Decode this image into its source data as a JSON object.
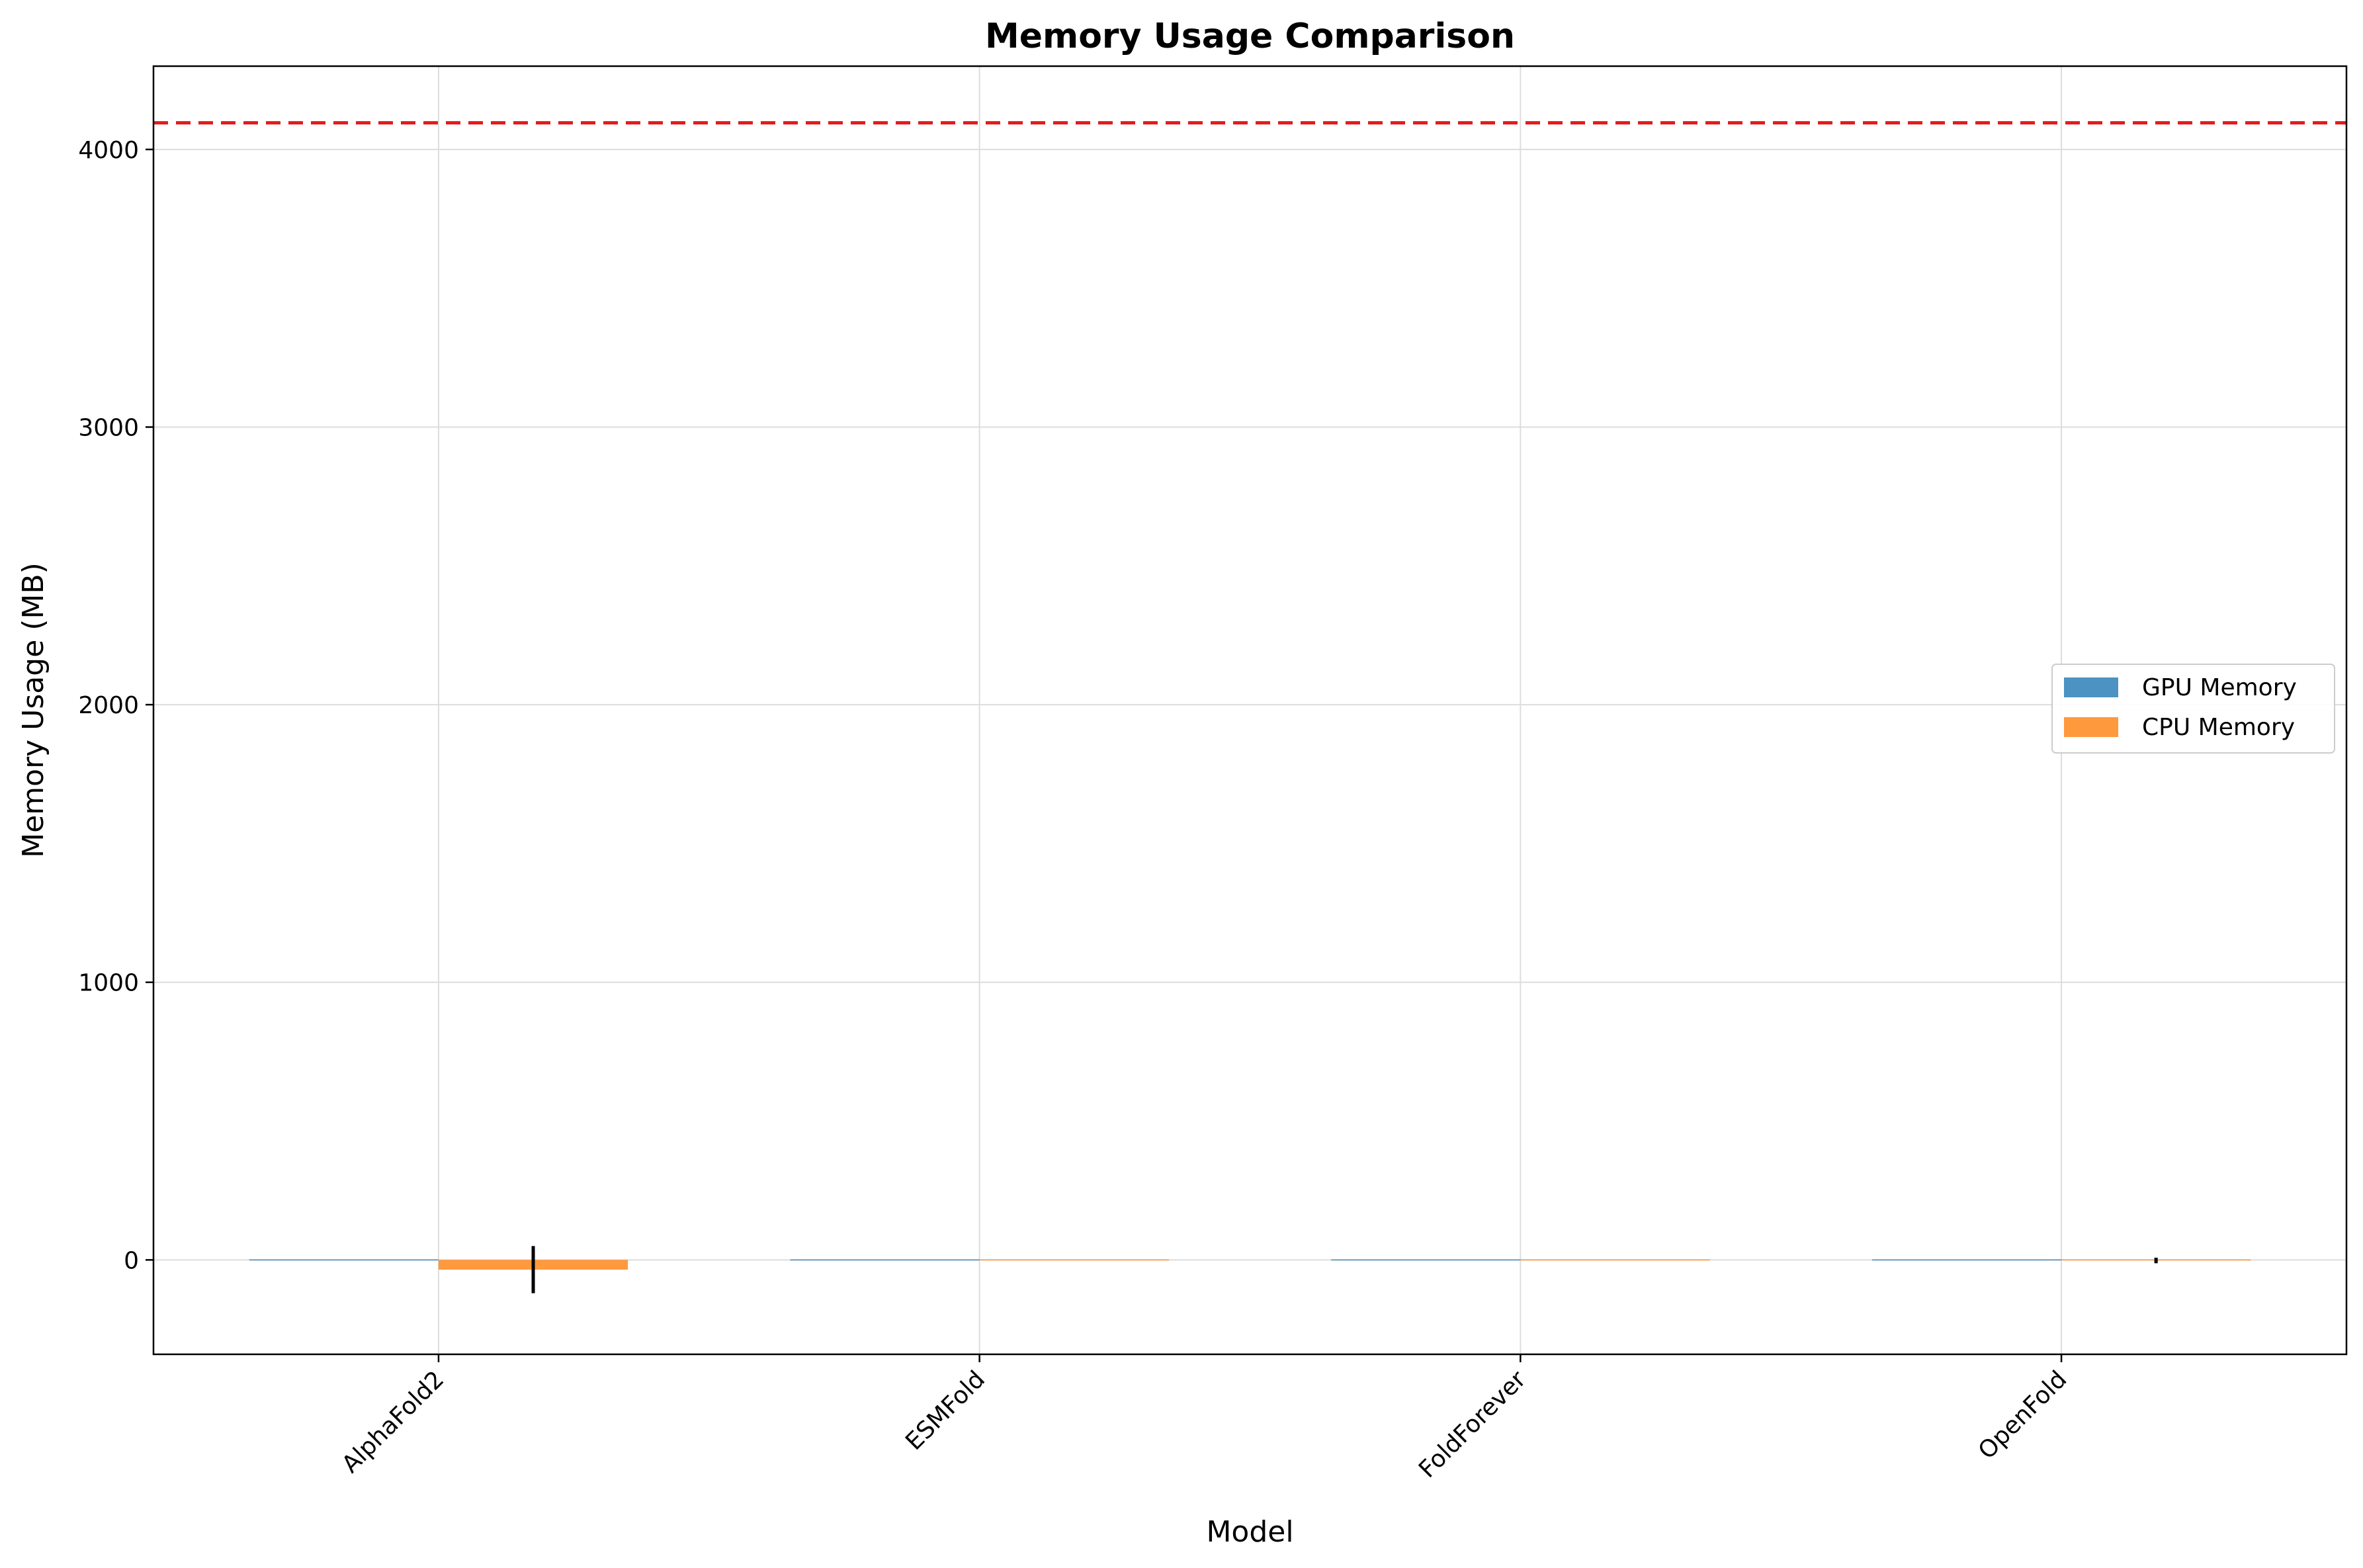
{
  "chart_data": {
    "type": "bar",
    "title": "Memory Usage Comparison",
    "xlabel": "Model",
    "ylabel": "Memory Usage (MB)",
    "categories": [
      "AlphaFold2",
      "ESMFold",
      "FoldForever",
      "OpenFold"
    ],
    "series": [
      {
        "name": "GPU Memory",
        "color": "#1f77b4",
        "values": [
          0,
          0,
          0,
          0
        ],
        "errors": [
          0,
          0,
          0,
          0
        ]
      },
      {
        "name": "CPU Memory",
        "color": "#ff7f0e",
        "values": [
          -35,
          0,
          0,
          -2
        ],
        "errors": [
          85,
          0,
          0,
          10
        ]
      }
    ],
    "reference_line": {
      "value": 4096,
      "color": "#e41a1c",
      "style": "dashed"
    },
    "ylim": [
      -340,
      4300
    ],
    "yticks": [
      0,
      1000,
      2000,
      3000,
      4000
    ],
    "grid": true,
    "legend_position": "center-right",
    "xtick_rotation": 45
  }
}
